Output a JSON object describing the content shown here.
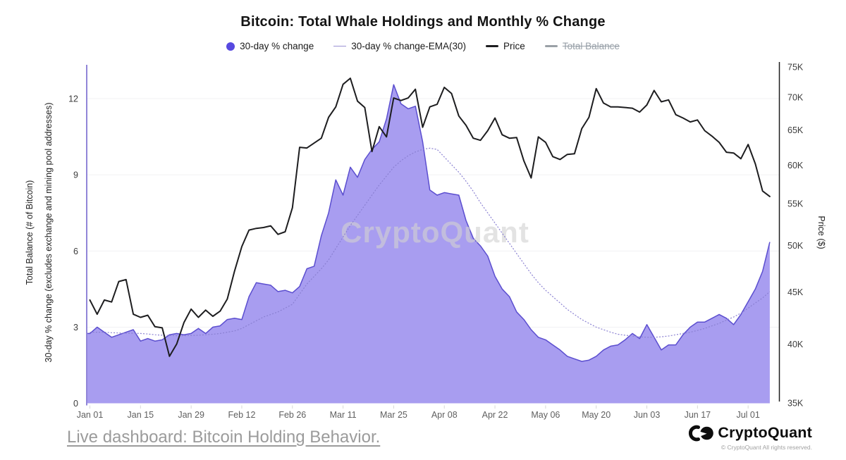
{
  "title": "Bitcoin: Total Whale Holdings and Monthly % Change",
  "legend": [
    {
      "label": "30-day % change",
      "type": "dot",
      "color": "#5749e0",
      "active": true
    },
    {
      "label": "30-day % change-EMA(30)",
      "type": "dashed-line",
      "color": "#9a91d4",
      "active": true
    },
    {
      "label": "Price",
      "type": "line",
      "color": "#1d1d1f",
      "active": true
    },
    {
      "label": "Total Balance",
      "type": "line",
      "color": "#9aa0a6",
      "active": false
    }
  ],
  "watermark": "CryptoQuant",
  "axes": {
    "left": {
      "title_line1": "Total Balance (# of Bitcoin)",
      "title_line2": "30-day % change (excludes exchange and mining pool addresses)",
      "ticks": [
        0,
        3,
        6,
        9,
        12
      ]
    },
    "right": {
      "title": "Price ($)",
      "scale": "log",
      "ticks": [
        "35K",
        "40K",
        "45K",
        "50K",
        "55K",
        "60K",
        "65K",
        "70K",
        "75K"
      ]
    },
    "x": {
      "ticks": [
        "Jan 01",
        "Jan 15",
        "Jan 29",
        "Feb 12",
        "Feb 26",
        "Mar 11",
        "Mar 25",
        "Apr 08",
        "Apr 22",
        "May 06",
        "May 20",
        "Jun 03",
        "Jun 17",
        "Jul 01"
      ],
      "tick_interval_days": 14
    }
  },
  "footer": {
    "link": "Live dashboard: Bitcoin Holding Behavior.",
    "brand": "CryptoQuant",
    "copyright": "© CryptoQuant All rights reserved."
  },
  "chart_data": {
    "type": "line",
    "title": "Bitcoin: Total Whale Holdings and Monthly % Change",
    "x_start_label": "Jan 01",
    "x_end_label": "Jul 07",
    "start_day": 0,
    "step_days": 2,
    "left_axis_range": [
      0,
      13.25
    ],
    "right_axis_range_k": [
      35,
      75
    ],
    "grid": "horizontal-only",
    "legend_position": "top",
    "series": [
      {
        "name": "30-day % change",
        "type": "area",
        "axis": "left",
        "unit": "%",
        "color_fill": "#a89df0",
        "color_edge": "#5b4ecf",
        "visible": true,
        "values": [
          2.75,
          3.0,
          2.8,
          2.6,
          2.7,
          2.8,
          2.9,
          2.45,
          2.55,
          2.45,
          2.5,
          2.7,
          2.75,
          2.7,
          2.75,
          2.95,
          2.75,
          3.0,
          3.05,
          3.3,
          3.35,
          3.3,
          4.2,
          4.75,
          4.7,
          4.65,
          4.4,
          4.45,
          4.35,
          4.6,
          5.3,
          5.4,
          6.6,
          7.5,
          8.8,
          8.2,
          9.3,
          8.9,
          9.6,
          10.0,
          10.3,
          11.2,
          12.55,
          11.8,
          11.6,
          11.7,
          10.3,
          8.4,
          8.2,
          8.3,
          8.25,
          8.2,
          7.2,
          6.5,
          6.2,
          5.8,
          5.0,
          4.5,
          4.2,
          3.6,
          3.3,
          2.9,
          2.6,
          2.5,
          2.3,
          2.1,
          1.85,
          1.75,
          1.65,
          1.7,
          1.85,
          2.1,
          2.25,
          2.3,
          2.5,
          2.75,
          2.55,
          3.1,
          2.6,
          2.1,
          2.3,
          2.3,
          2.7,
          3.0,
          3.2,
          3.2,
          3.35,
          3.5,
          3.35,
          3.1,
          3.5,
          4.0,
          4.5,
          5.2,
          6.35
        ]
      },
      {
        "name": "30-day % change-EMA(30)",
        "type": "line",
        "axis": "left",
        "unit": "%",
        "style": "dotted",
        "color": "#8a80d2",
        "visible": true,
        "values": [
          2.8,
          2.8,
          2.8,
          2.78,
          2.77,
          2.76,
          2.76,
          2.75,
          2.73,
          2.7,
          2.68,
          2.67,
          2.66,
          2.66,
          2.67,
          2.68,
          2.7,
          2.72,
          2.75,
          2.8,
          2.85,
          2.95,
          3.1,
          3.25,
          3.4,
          3.5,
          3.6,
          3.75,
          3.9,
          4.3,
          4.7,
          5.0,
          5.3,
          5.65,
          6.1,
          6.55,
          7.0,
          7.4,
          7.8,
          8.2,
          8.6,
          8.95,
          9.3,
          9.55,
          9.75,
          9.9,
          10.0,
          10.05,
          10.0,
          9.7,
          9.4,
          9.1,
          8.75,
          8.35,
          7.9,
          7.5,
          7.1,
          6.7,
          6.3,
          5.9,
          5.5,
          5.1,
          4.75,
          4.45,
          4.2,
          3.95,
          3.7,
          3.5,
          3.3,
          3.15,
          3.0,
          2.9,
          2.8,
          2.72,
          2.68,
          2.65,
          2.62,
          2.6,
          2.6,
          2.62,
          2.65,
          2.7,
          2.75,
          2.8,
          2.87,
          2.95,
          3.05,
          3.15,
          3.28,
          3.4,
          3.55,
          3.75,
          3.95,
          4.15,
          4.4
        ]
      },
      {
        "name": "Price",
        "type": "line",
        "axis": "right",
        "unit": "K$",
        "color": "#1d1d1f",
        "visible": true,
        "values": [
          44.2,
          42.8,
          44.2,
          44.0,
          46.1,
          46.3,
          42.8,
          42.5,
          42.7,
          41.6,
          41.5,
          38.9,
          40.0,
          42.0,
          43.3,
          42.5,
          43.2,
          42.6,
          43.1,
          44.3,
          47.2,
          49.9,
          51.8,
          52.0,
          52.1,
          52.3,
          51.3,
          51.6,
          54.5,
          62.5,
          62.4,
          63.1,
          63.8,
          66.9,
          68.5,
          72.1,
          73.1,
          69.4,
          68.4,
          61.9,
          65.5,
          64.0,
          69.9,
          69.5,
          69.9,
          71.3,
          65.4,
          68.5,
          68.9,
          71.6,
          70.6,
          67.1,
          65.7,
          63.8,
          63.5,
          64.9,
          66.8,
          64.3,
          63.8,
          63.9,
          60.6,
          58.3,
          64.0,
          63.2,
          61.2,
          60.8,
          61.5,
          61.6,
          65.2,
          66.9,
          71.4,
          69.1,
          68.5,
          68.5,
          68.4,
          68.3,
          67.7,
          68.8,
          71.1,
          69.3,
          69.6,
          67.3,
          66.8,
          66.2,
          66.5,
          64.9,
          64.1,
          63.2,
          61.8,
          61.7,
          60.9,
          62.9,
          60.2,
          56.6,
          55.9
        ]
      },
      {
        "name": "Total Balance",
        "type": "line",
        "axis": "left",
        "color": "#9aa0a6",
        "visible": false,
        "values": []
      }
    ]
  }
}
